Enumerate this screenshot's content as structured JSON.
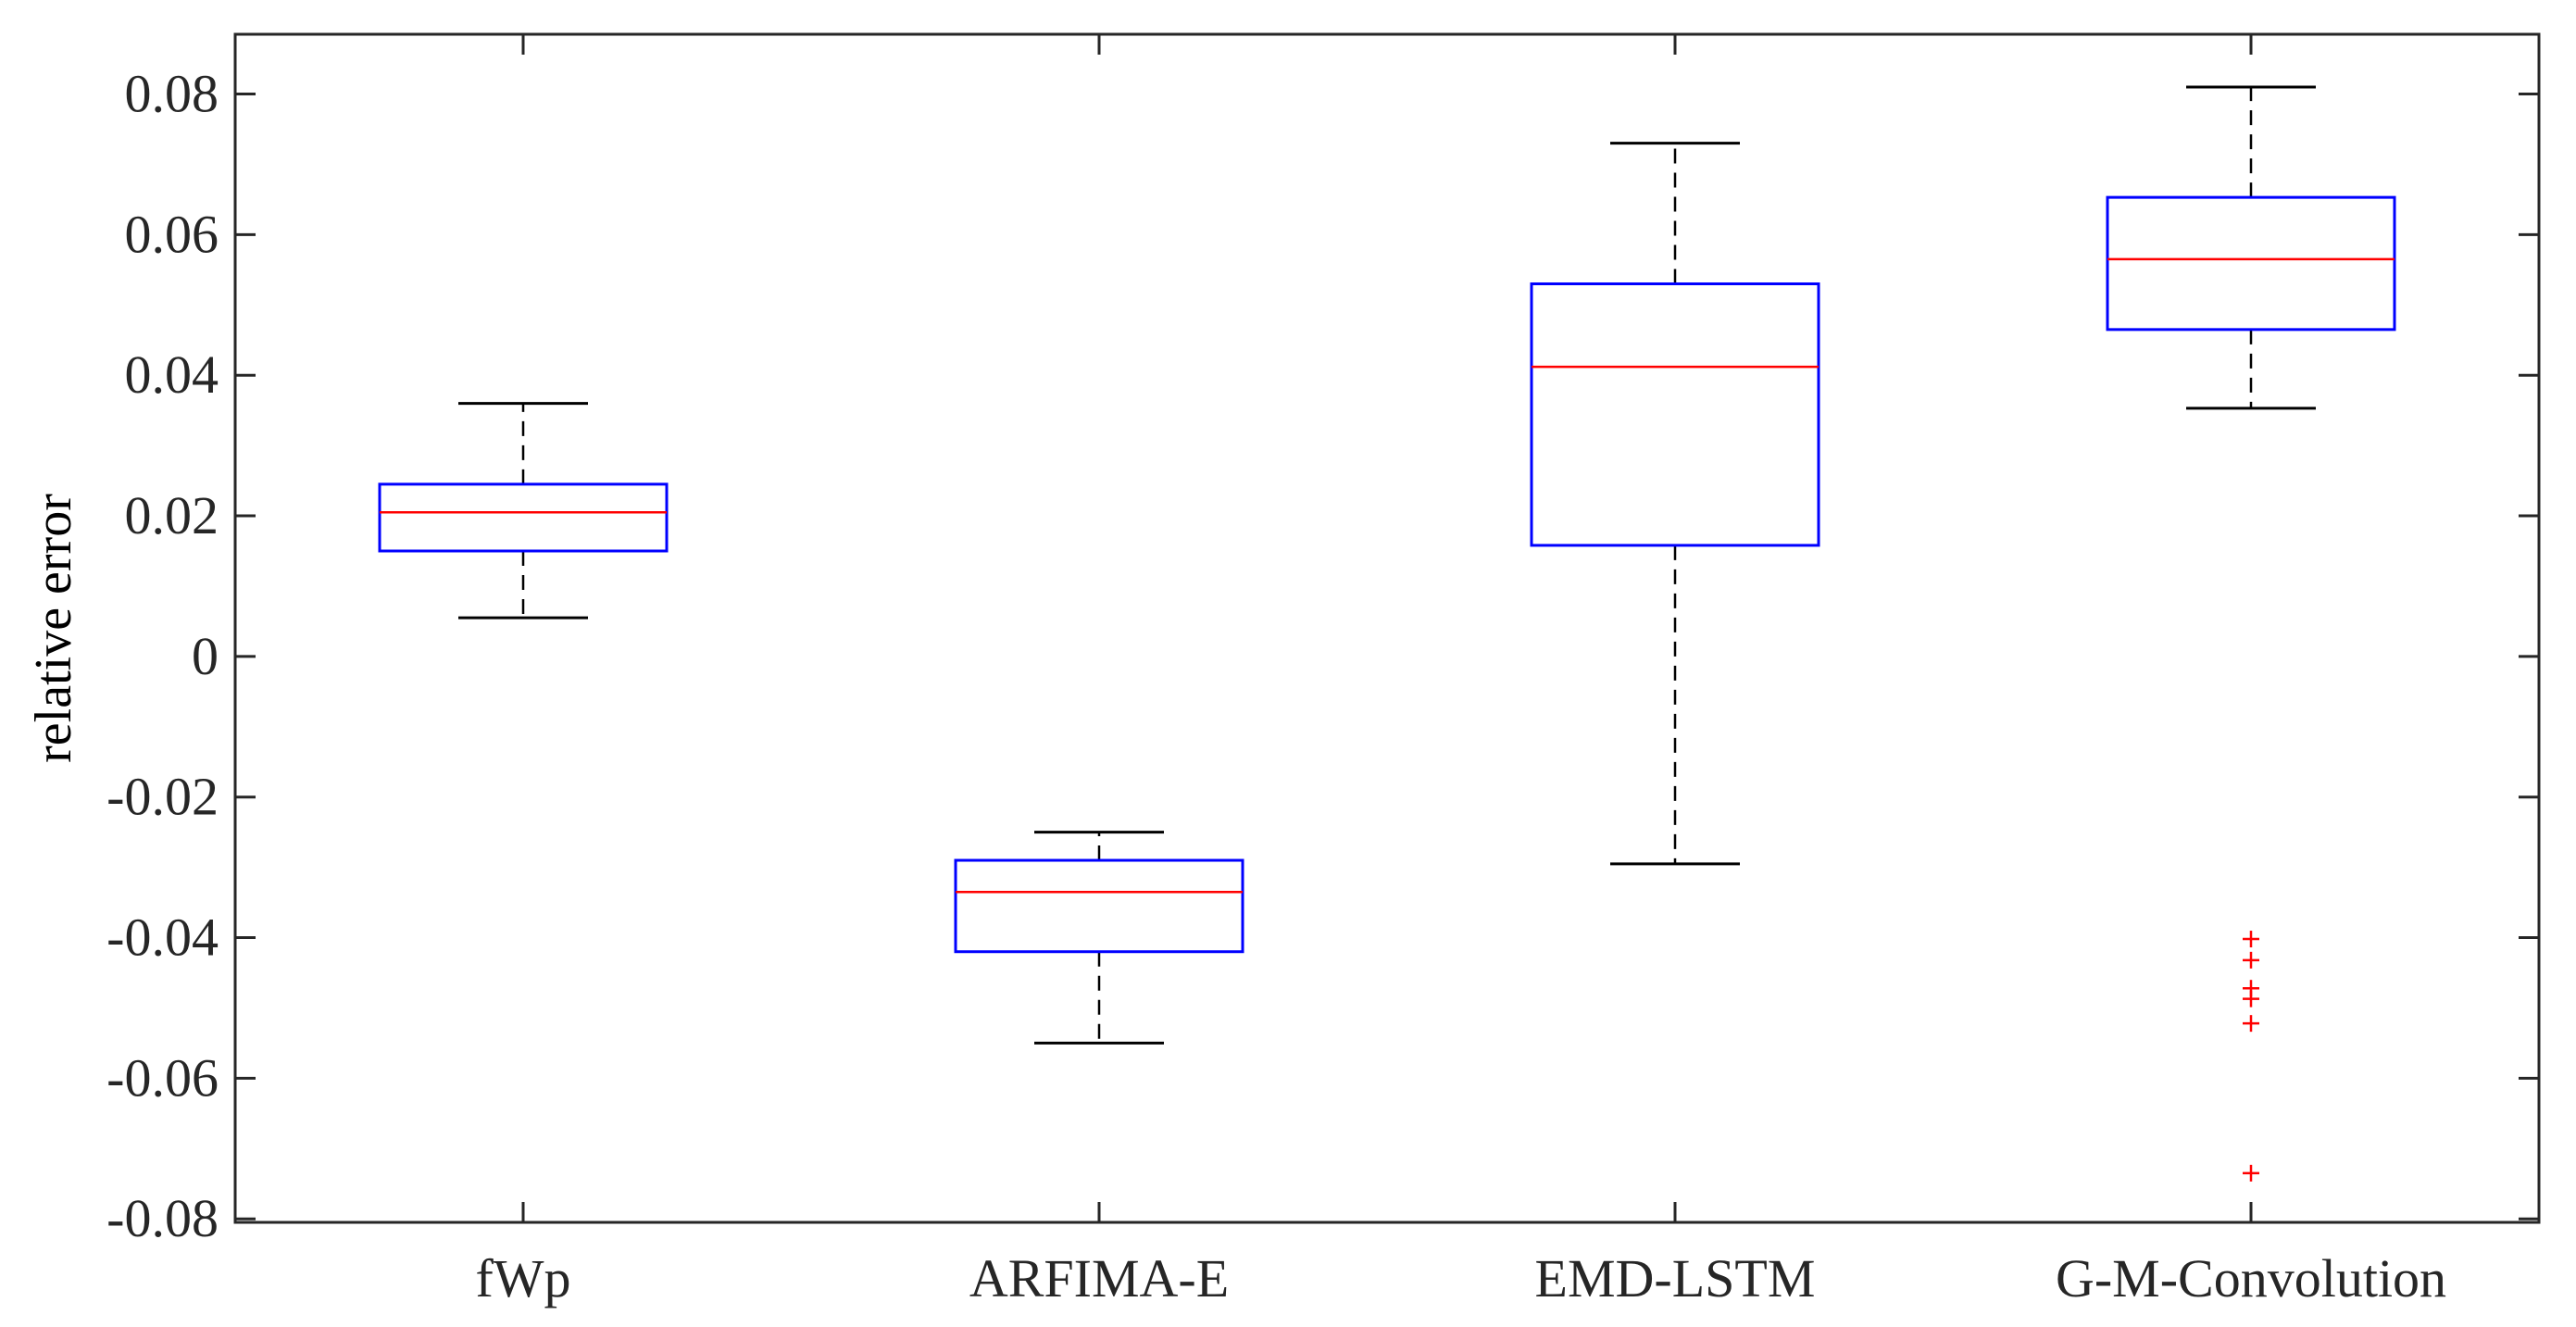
{
  "chart_data": {
    "type": "boxplot",
    "title": "",
    "xlabel": "",
    "ylabel": "relative error",
    "ylim": [
      -0.0805,
      0.0885
    ],
    "yticks": [
      0.08,
      0.06,
      0.04,
      0.02,
      0,
      -0.02,
      -0.04,
      -0.06,
      -0.08
    ],
    "ytick_labels": [
      "0.08",
      "0.06",
      "0.04",
      "0.02",
      "0",
      "-0.02",
      "-0.04",
      "-0.06",
      "-0.08"
    ],
    "categories": [
      "fWp",
      "ARFIMA-E",
      "EMD-LSTM",
      "G-M-Convolution"
    ],
    "boxes": [
      {
        "category": "fWp",
        "whisker_low": 0.0055,
        "q1": 0.015,
        "median": 0.0205,
        "q3": 0.0245,
        "whisker_high": 0.036,
        "outliers": []
      },
      {
        "category": "ARFIMA-E",
        "whisker_low": -0.055,
        "q1": -0.042,
        "median": -0.0335,
        "q3": -0.029,
        "whisker_high": -0.025,
        "outliers": []
      },
      {
        "category": "EMD-LSTM",
        "whisker_low": -0.0295,
        "q1": 0.0158,
        "median": 0.0412,
        "q3": 0.053,
        "whisker_high": 0.073,
        "outliers": []
      },
      {
        "category": "G-M-Convolution",
        "whisker_low": 0.0353,
        "q1": 0.0465,
        "median": 0.0565,
        "q3": 0.0653,
        "whisker_high": 0.081,
        "outliers": [
          -0.0402,
          -0.0432,
          -0.0472,
          -0.0487,
          -0.0522,
          -0.0735
        ]
      }
    ],
    "grid": false,
    "legend": "none",
    "colors": {
      "box": "#0000ff",
      "median": "#ff0000",
      "whisker": "#000000",
      "outlier": "#ff0000",
      "axis": "#262626"
    }
  }
}
